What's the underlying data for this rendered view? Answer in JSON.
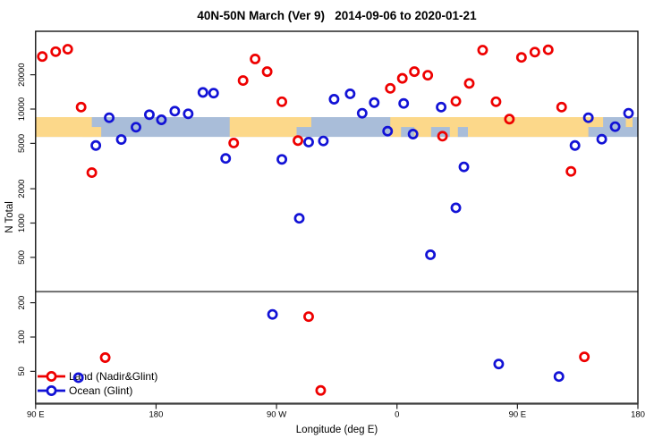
{
  "chart_data": {
    "type": "scatter",
    "title": "40N-50N March (Ver 9)   2014-09-06 to 2020-01-21",
    "xlabel": "Longitude (deg E)",
    "ylabel": "N Total",
    "x_axis": {
      "range_lon": [
        90,
        540
      ],
      "ticks": [
        {
          "lon": 90,
          "label": "90 E"
        },
        {
          "lon": 180,
          "label": "180"
        },
        {
          "lon": 270,
          "label": "90 W"
        },
        {
          "lon": 360,
          "label": "0"
        },
        {
          "lon": 450,
          "label": "90 E"
        },
        {
          "lon": 540,
          "label": "180"
        }
      ]
    },
    "y_axis": {
      "scale": "log",
      "range": [
        25,
        47000
      ],
      "ticks": [
        20000,
        10000,
        5000,
        2000,
        1000,
        500,
        200,
        100,
        50
      ]
    },
    "reference_line_n": 250,
    "map_band": {
      "n_range": [
        5700,
        8500
      ],
      "ocean_color": "#a9bdd9",
      "land_color": "#fcd88a",
      "land_segments": [
        {
          "lon": [
            90,
            132
          ],
          "extent": "full"
        },
        {
          "lon": [
            125,
            139
          ],
          "extent": "bottom"
        },
        {
          "lon": [
            235,
            296
          ],
          "extent": "full"
        },
        {
          "lon": [
            355,
            503
          ],
          "extent": "full"
        },
        {
          "lon": [
            503,
            514
          ],
          "extent": "top"
        },
        {
          "lon": [
            531,
            536
          ],
          "extent": "top"
        }
      ],
      "ocean_patches": [
        {
          "lon": [
            285,
            296
          ],
          "extent": "bottom"
        },
        {
          "lon": [
            363,
            373
          ],
          "extent": "bottom"
        },
        {
          "lon": [
            385.5,
            399.5
          ],
          "extent": "bottom"
        },
        {
          "lon": [
            405.5,
            413
          ],
          "extent": "bottom"
        }
      ]
    },
    "series": [
      {
        "name": "Land (Nadir&Glint)",
        "color": "#ee0000",
        "points": [
          [
            95,
            28900
          ],
          [
            105,
            31900
          ],
          [
            114,
            33500
          ],
          [
            124,
            10400
          ],
          [
            132,
            2770
          ],
          [
            142,
            66
          ],
          [
            238,
            5040
          ],
          [
            245,
            17800
          ],
          [
            254,
            27500
          ],
          [
            263,
            21300
          ],
          [
            274,
            11600
          ],
          [
            286,
            5290
          ],
          [
            294,
            151
          ],
          [
            303,
            34
          ],
          [
            355,
            15200
          ],
          [
            364,
            18600
          ],
          [
            373,
            21300
          ],
          [
            383,
            19800
          ],
          [
            394,
            5780
          ],
          [
            404,
            11700
          ],
          [
            414,
            16800
          ],
          [
            424,
            32900
          ],
          [
            434,
            11600
          ],
          [
            444,
            8160
          ],
          [
            453,
            28400
          ],
          [
            463,
            31600
          ],
          [
            473,
            33100
          ],
          [
            483,
            10400
          ],
          [
            490,
            2840
          ],
          [
            500,
            67
          ]
        ]
      },
      {
        "name": "Ocean (Glint)",
        "color": "#1212d6",
        "points": [
          [
            122,
            44
          ],
          [
            135,
            4790
          ],
          [
            145,
            8390
          ],
          [
            154,
            5410
          ],
          [
            165,
            6930
          ],
          [
            175,
            8930
          ],
          [
            184,
            8050
          ],
          [
            194,
            9590
          ],
          [
            204,
            9090
          ],
          [
            215,
            14000
          ],
          [
            223,
            13800
          ],
          [
            232,
            3690
          ],
          [
            267,
            158
          ],
          [
            274,
            3620
          ],
          [
            287,
            1100
          ],
          [
            294,
            5130
          ],
          [
            305,
            5250
          ],
          [
            313,
            12200
          ],
          [
            325,
            13600
          ],
          [
            334,
            9190
          ],
          [
            343,
            11400
          ],
          [
            353,
            6400
          ],
          [
            365,
            11200
          ],
          [
            372,
            6030
          ],
          [
            385,
            527
          ],
          [
            393,
            10400
          ],
          [
            404,
            1360
          ],
          [
            410,
            3110
          ],
          [
            436,
            58
          ],
          [
            481,
            45
          ],
          [
            493,
            4790
          ],
          [
            503,
            8390
          ],
          [
            513,
            5440
          ],
          [
            523,
            7010
          ],
          [
            533,
            9190
          ]
        ]
      }
    ],
    "legend": {
      "position": "bottom-left",
      "items": [
        {
          "label": "Land (Nadir&Glint)",
          "color": "#ee0000"
        },
        {
          "label": "Ocean (Glint)",
          "color": "#1212d6"
        }
      ]
    }
  }
}
